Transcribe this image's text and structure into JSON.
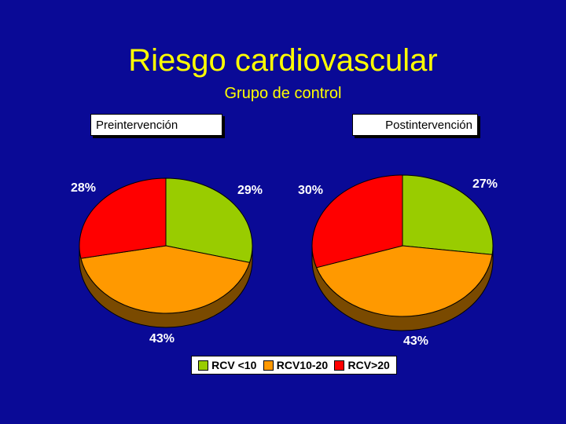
{
  "title": "Riesgo cardiovascular",
  "subtitle": "Grupo de control",
  "colors": {
    "background": "#0a0a96",
    "title": "#ffff00",
    "green": "#99cc00",
    "orange": "#ff9900",
    "red": "#ff0000",
    "side": "#7a4a00"
  },
  "chart_data": [
    {
      "type": "pie",
      "title": "Preintervención",
      "categories": [
        "RCV <10",
        "RCV10-20",
        "RCV>20"
      ],
      "values": [
        29,
        43,
        28
      ],
      "labels": [
        "29%",
        "43%",
        "28%"
      ]
    },
    {
      "type": "pie",
      "title": "Postintervención",
      "categories": [
        "RCV <10",
        "RCV10-20",
        "RCV>20"
      ],
      "values": [
        27,
        43,
        30
      ],
      "labels": [
        "27%",
        "43%",
        "30%"
      ]
    }
  ],
  "legend": [
    {
      "label": "RCV <10",
      "color": "#99cc00"
    },
    {
      "label": "RCV10-20",
      "color": "#ff9900"
    },
    {
      "label": "RCV>20",
      "color": "#ff0000"
    }
  ]
}
